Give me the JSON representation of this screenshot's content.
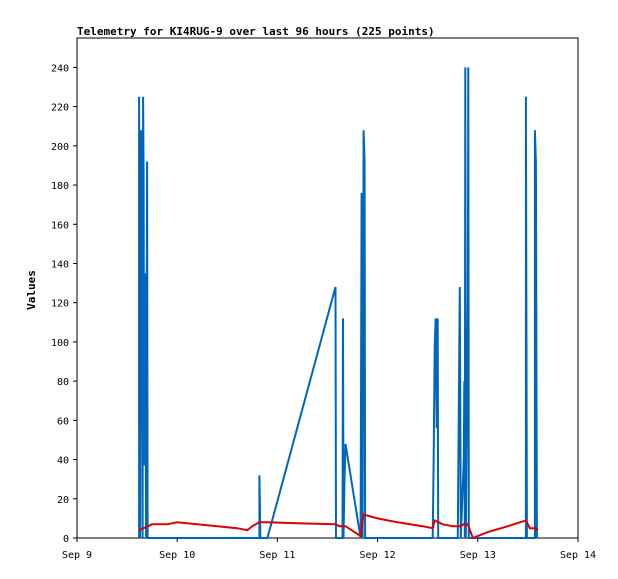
{
  "chart_data": {
    "type": "line",
    "title": "Telemetry for KI4RUG-9 over last 96 hours (225 points)",
    "xlabel": "",
    "ylabel": "Values",
    "x_ticks": [
      "Sep 9",
      "Sep 10",
      "Sep 11",
      "Sep 12",
      "Sep 13",
      "Sep 14"
    ],
    "xlim": [
      9,
      14
    ],
    "ylim": [
      0,
      255
    ],
    "y_ticks": [
      0,
      20,
      40,
      60,
      80,
      100,
      120,
      140,
      160,
      180,
      200,
      220,
      240
    ],
    "series": [
      {
        "color": "#0066bb",
        "points": [
          [
            9.62,
            0
          ],
          [
            9.62,
            225
          ],
          [
            9.63,
            0
          ],
          [
            9.64,
            208
          ],
          [
            9.645,
            55
          ],
          [
            9.65,
            180
          ],
          [
            9.655,
            0
          ],
          [
            9.66,
            225
          ],
          [
            9.665,
            185
          ],
          [
            9.67,
            37
          ],
          [
            9.675,
            112
          ],
          [
            9.68,
            135
          ],
          [
            9.69,
            0
          ],
          [
            9.7,
            192
          ],
          [
            9.705,
            0
          ],
          [
            10.82,
            0
          ],
          [
            10.82,
            32
          ],
          [
            10.83,
            0
          ],
          [
            10.9,
            0
          ],
          [
            11.58,
            128
          ],
          [
            11.585,
            0
          ],
          [
            11.65,
            0
          ],
          [
            11.655,
            112
          ],
          [
            11.66,
            0
          ],
          [
            11.67,
            30
          ],
          [
            11.68,
            48
          ],
          [
            11.83,
            0
          ],
          [
            11.84,
            176
          ],
          [
            11.85,
            0
          ],
          [
            11.86,
            208
          ],
          [
            11.87,
            192
          ],
          [
            11.875,
            0
          ],
          [
            12.55,
            0
          ],
          [
            12.56,
            42
          ],
          [
            12.57,
            98
          ],
          [
            12.58,
            112
          ],
          [
            12.59,
            56
          ],
          [
            12.6,
            112
          ],
          [
            12.605,
            0
          ],
          [
            12.8,
            0
          ],
          [
            12.81,
            65
          ],
          [
            12.82,
            128
          ],
          [
            12.83,
            0
          ],
          [
            12.86,
            40
          ],
          [
            12.865,
            80
          ],
          [
            12.87,
            0
          ],
          [
            12.875,
            240
          ],
          [
            12.88,
            0
          ],
          [
            12.9,
            120
          ],
          [
            12.905,
            240
          ],
          [
            12.91,
            0
          ],
          [
            13.48,
            0
          ],
          [
            13.48,
            225
          ],
          [
            13.49,
            0
          ],
          [
            13.57,
            0
          ],
          [
            13.57,
            208
          ],
          [
            13.58,
            192
          ],
          [
            13.59,
            0
          ]
        ]
      },
      {
        "color": "#dd0000",
        "points": [
          [
            9.62,
            4
          ],
          [
            9.75,
            7
          ],
          [
            9.9,
            7
          ],
          [
            10.0,
            8
          ],
          [
            10.2,
            7
          ],
          [
            10.4,
            6
          ],
          [
            10.6,
            5
          ],
          [
            10.7,
            4
          ],
          [
            10.75,
            6
          ],
          [
            10.82,
            8
          ],
          [
            10.9,
            8
          ],
          [
            11.2,
            7.5
          ],
          [
            11.58,
            7
          ],
          [
            11.62,
            6
          ],
          [
            11.68,
            6
          ],
          [
            11.83,
            1
          ],
          [
            11.86,
            12
          ],
          [
            12.0,
            10
          ],
          [
            12.2,
            8
          ],
          [
            12.45,
            6
          ],
          [
            12.55,
            5
          ],
          [
            12.57,
            9
          ],
          [
            12.65,
            7
          ],
          [
            12.75,
            6
          ],
          [
            12.82,
            6
          ],
          [
            12.86,
            7
          ],
          [
            12.9,
            7
          ],
          [
            12.95,
            0
          ],
          [
            13.1,
            3
          ],
          [
            13.3,
            6
          ],
          [
            13.48,
            9
          ],
          [
            13.52,
            5
          ],
          [
            13.58,
            5
          ],
          [
            13.6,
            4
          ]
        ]
      }
    ]
  }
}
